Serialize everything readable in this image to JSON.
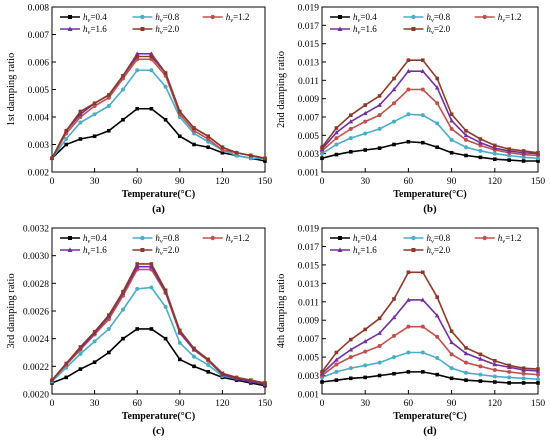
{
  "colors": {
    "hv_0_4": "#000000",
    "hv_0_8": "#4bacc6",
    "hv_1_2": "#c0504d",
    "hv_1_6": "#7030a0",
    "hv_2_0": "#8b3a2a"
  },
  "legend": {
    "var": "h",
    "sub": "v",
    "entries": [
      "=0.4",
      "=0.8",
      "=1.2",
      "=1.6",
      "=2.0"
    ]
  },
  "chart_data": [
    {
      "type": "line",
      "panel_label": "(a)",
      "xlabel": "Temperature(°C)",
      "ylabel": "1st damping ratio",
      "xlim": [
        0,
        150
      ],
      "ylim": [
        0.002,
        0.008
      ],
      "xticks": [
        0,
        30,
        60,
        90,
        120,
        150
      ],
      "yticks": [
        "0.002",
        "0.003",
        "0.004",
        "0.005",
        "0.006",
        "0.007",
        "0.008"
      ],
      "x": [
        0,
        10,
        20,
        30,
        40,
        50,
        60,
        70,
        80,
        90,
        100,
        110,
        120,
        130,
        140,
        150
      ],
      "series": [
        {
          "name": "hv=0.4",
          "color_key": "hv_0_4",
          "values": [
            0.0025,
            0.003,
            0.0032,
            0.0033,
            0.0035,
            0.0039,
            0.0043,
            0.0043,
            0.0039,
            0.0033,
            0.003,
            0.0029,
            0.0027,
            0.0026,
            0.0025,
            0.0024
          ]
        },
        {
          "name": "hv=0.8",
          "color_key": "hv_0_8",
          "values": [
            0.0025,
            0.0032,
            0.0038,
            0.0041,
            0.0044,
            0.005,
            0.0057,
            0.0057,
            0.0051,
            0.004,
            0.0034,
            0.0031,
            0.0028,
            0.0026,
            0.0025,
            0.0025
          ]
        },
        {
          "name": "hv=1.2",
          "color_key": "hv_1_2",
          "values": [
            0.0025,
            0.0034,
            0.004,
            0.0044,
            0.0047,
            0.0054,
            0.0061,
            0.0061,
            0.0055,
            0.0041,
            0.0035,
            0.0032,
            0.0028,
            0.0027,
            0.0026,
            0.0025
          ]
        },
        {
          "name": "hv=1.6",
          "color_key": "hv_1_6",
          "values": [
            0.0025,
            0.0035,
            0.0041,
            0.0045,
            0.0048,
            0.0055,
            0.0063,
            0.0063,
            0.0056,
            0.0042,
            0.0036,
            0.0033,
            0.0029,
            0.0027,
            0.0026,
            0.0025
          ]
        },
        {
          "name": "hv=2.0",
          "color_key": "hv_2_0",
          "values": [
            0.0025,
            0.0035,
            0.0042,
            0.0045,
            0.0048,
            0.0055,
            0.0062,
            0.0062,
            0.0056,
            0.0042,
            0.0036,
            0.0033,
            0.0029,
            0.0027,
            0.0026,
            0.0025
          ]
        }
      ]
    },
    {
      "type": "line",
      "panel_label": "(b)",
      "xlabel": "Temperature(°C)",
      "ylabel": "2nd damping ratio",
      "xlim": [
        0,
        150
      ],
      "ylim": [
        0.001,
        0.019
      ],
      "xticks": [
        0,
        30,
        60,
        90,
        120,
        150
      ],
      "yticks": [
        "0.001",
        "0.003",
        "0.005",
        "0.007",
        "0.009",
        "0.011",
        "0.013",
        "0.015",
        "0.017",
        "0.019"
      ],
      "x": [
        0,
        10,
        20,
        30,
        40,
        50,
        60,
        70,
        80,
        90,
        100,
        110,
        120,
        130,
        140,
        150
      ],
      "series": [
        {
          "name": "hv=0.4",
          "color_key": "hv_0_4",
          "values": [
            0.0025,
            0.0029,
            0.0032,
            0.0034,
            0.0036,
            0.004,
            0.0043,
            0.0042,
            0.0037,
            0.0031,
            0.0028,
            0.0026,
            0.0024,
            0.0023,
            0.0022,
            0.0022
          ]
        },
        {
          "name": "hv=0.8",
          "color_key": "hv_0_8",
          "values": [
            0.003,
            0.004,
            0.0047,
            0.0052,
            0.0057,
            0.0065,
            0.0073,
            0.0072,
            0.0063,
            0.0045,
            0.0037,
            0.0033,
            0.003,
            0.0028,
            0.0026,
            0.0025
          ]
        },
        {
          "name": "hv=1.2",
          "color_key": "hv_1_2",
          "values": [
            0.0033,
            0.0047,
            0.0057,
            0.0065,
            0.0072,
            0.0085,
            0.01,
            0.01,
            0.0085,
            0.0057,
            0.0045,
            0.0039,
            0.0034,
            0.0031,
            0.0029,
            0.0028
          ]
        },
        {
          "name": "hv=1.6",
          "color_key": "hv_1_6",
          "values": [
            0.0035,
            0.0053,
            0.0065,
            0.0074,
            0.0083,
            0.01,
            0.012,
            0.012,
            0.0102,
            0.0066,
            0.005,
            0.0042,
            0.0036,
            0.0033,
            0.0031,
            0.003
          ]
        },
        {
          "name": "hv=2.0",
          "color_key": "hv_2_0",
          "values": [
            0.0037,
            0.0058,
            0.0072,
            0.0083,
            0.0093,
            0.0112,
            0.0132,
            0.0132,
            0.0112,
            0.0073,
            0.0055,
            0.0046,
            0.0039,
            0.0035,
            0.0033,
            0.0031
          ]
        }
      ]
    },
    {
      "type": "line",
      "panel_label": "(c)",
      "xlabel": "Temperature(°C)",
      "ylabel": "3rd damping ratio",
      "xlim": [
        0,
        150
      ],
      "ylim": [
        0.002,
        0.0032
      ],
      "xticks": [
        0,
        30,
        60,
        90,
        120,
        150
      ],
      "yticks": [
        "0.0020",
        "0.0022",
        "0.0024",
        "0.0026",
        "0.0028",
        "0.0030",
        "0.0032"
      ],
      "x": [
        0,
        10,
        20,
        30,
        40,
        50,
        60,
        70,
        80,
        90,
        100,
        110,
        120,
        130,
        140,
        150
      ],
      "series": [
        {
          "name": "hv=0.4",
          "color_key": "hv_0_4",
          "values": [
            0.00208,
            0.00212,
            0.00218,
            0.00223,
            0.0023,
            0.0024,
            0.00247,
            0.00247,
            0.0024,
            0.00225,
            0.0022,
            0.00216,
            0.00212,
            0.0021,
            0.00208,
            0.00206
          ]
        },
        {
          "name": "hv=0.8",
          "color_key": "hv_0_8",
          "values": [
            0.00209,
            0.00219,
            0.00229,
            0.00238,
            0.00247,
            0.00261,
            0.00276,
            0.00277,
            0.00263,
            0.00237,
            0.00227,
            0.00221,
            0.00213,
            0.00211,
            0.00209,
            0.00207
          ]
        },
        {
          "name": "hv=1.2",
          "color_key": "hv_1_2",
          "values": [
            0.0021,
            0.00221,
            0.00232,
            0.00243,
            0.00254,
            0.00271,
            0.0029,
            0.0029,
            0.00273,
            0.00244,
            0.00232,
            0.00224,
            0.00214,
            0.00211,
            0.00209,
            0.00207
          ]
        },
        {
          "name": "hv=1.6",
          "color_key": "hv_1_6",
          "values": [
            0.0021,
            0.00222,
            0.00233,
            0.00244,
            0.00256,
            0.00273,
            0.00292,
            0.00292,
            0.00274,
            0.00245,
            0.00232,
            0.00225,
            0.00214,
            0.00211,
            0.00209,
            0.00207
          ]
        },
        {
          "name": "hv=2.0",
          "color_key": "hv_2_0",
          "values": [
            0.0021,
            0.00222,
            0.00234,
            0.00245,
            0.00257,
            0.00274,
            0.00294,
            0.00294,
            0.00275,
            0.00246,
            0.00233,
            0.00225,
            0.00215,
            0.00212,
            0.0021,
            0.00208
          ]
        }
      ]
    },
    {
      "type": "line",
      "panel_label": "(d)",
      "xlabel": "Temperature(°C)",
      "ylabel": "4th damping ratio",
      "xlim": [
        0,
        150
      ],
      "ylim": [
        0.001,
        0.019
      ],
      "xticks": [
        0,
        30,
        60,
        90,
        120,
        150
      ],
      "yticks": [
        "0.001",
        "0.003",
        "0.005",
        "0.007",
        "0.009",
        "0.011",
        "0.013",
        "0.015",
        "0.017",
        "0.019"
      ],
      "x": [
        0,
        10,
        20,
        30,
        40,
        50,
        60,
        70,
        80,
        90,
        100,
        110,
        120,
        130,
        140,
        150
      ],
      "series": [
        {
          "name": "hv=0.4",
          "color_key": "hv_0_4",
          "values": [
            0.0023,
            0.0025,
            0.0027,
            0.0028,
            0.003,
            0.0032,
            0.0034,
            0.0034,
            0.0031,
            0.0027,
            0.0025,
            0.0024,
            0.0023,
            0.0022,
            0.0022,
            0.0022
          ]
        },
        {
          "name": "hv=0.8",
          "color_key": "hv_0_8",
          "values": [
            0.0028,
            0.0034,
            0.0038,
            0.0041,
            0.0044,
            0.005,
            0.0055,
            0.0055,
            0.0049,
            0.0038,
            0.0033,
            0.0031,
            0.0029,
            0.0028,
            0.0027,
            0.0026
          ]
        },
        {
          "name": "hv=1.2",
          "color_key": "hv_1_2",
          "values": [
            0.003,
            0.0042,
            0.005,
            0.0056,
            0.0062,
            0.0073,
            0.0083,
            0.0083,
            0.0072,
            0.0053,
            0.0044,
            0.004,
            0.0036,
            0.0034,
            0.0032,
            0.0031
          ]
        },
        {
          "name": "hv=1.6",
          "color_key": "hv_1_6",
          "values": [
            0.0032,
            0.0047,
            0.0058,
            0.0067,
            0.0076,
            0.0093,
            0.0112,
            0.0112,
            0.0095,
            0.0066,
            0.0054,
            0.0048,
            0.0042,
            0.0039,
            0.0036,
            0.0035
          ]
        },
        {
          "name": "hv=2.0",
          "color_key": "hv_2_0",
          "values": [
            0.0034,
            0.0055,
            0.0069,
            0.008,
            0.0092,
            0.0113,
            0.0142,
            0.0142,
            0.0115,
            0.0078,
            0.006,
            0.0053,
            0.0046,
            0.0041,
            0.0038,
            0.0037
          ]
        }
      ]
    }
  ]
}
